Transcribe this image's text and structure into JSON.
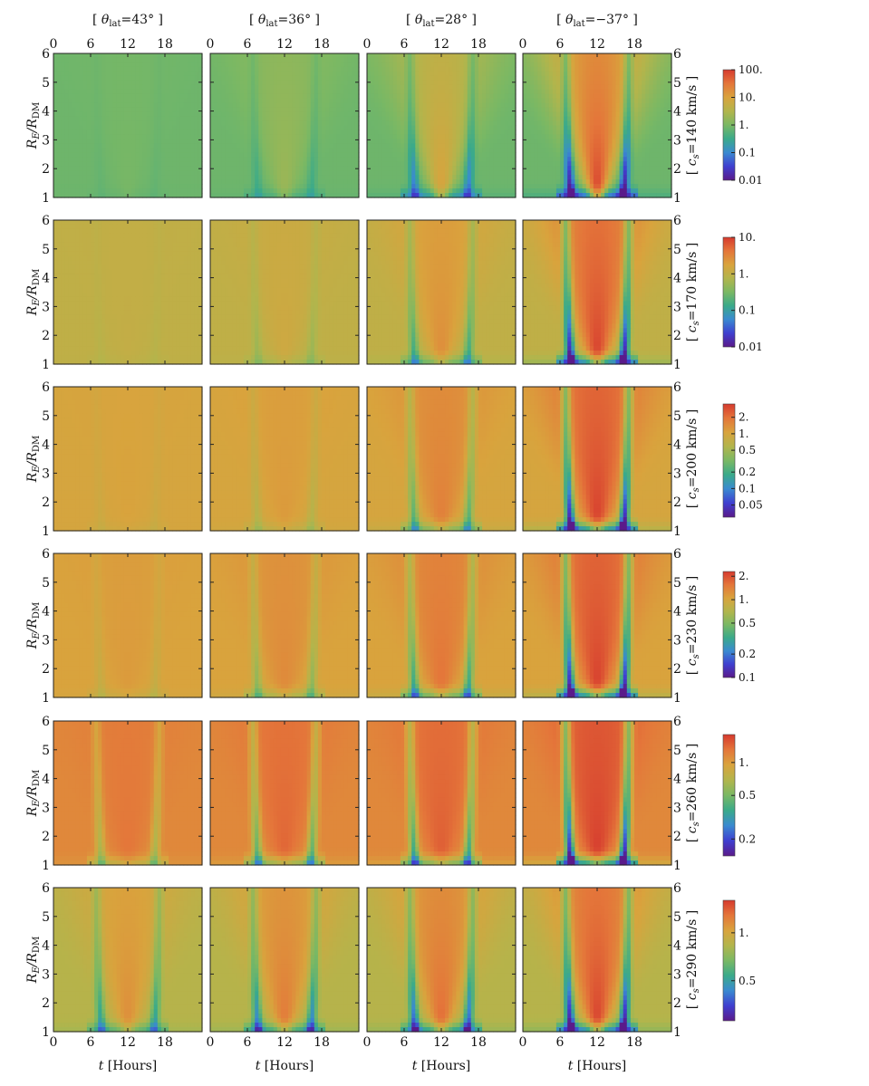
{
  "chart_data": {
    "type": "heatmap",
    "column_titles": [
      {
        "open": "[ ",
        "sym": "θ",
        "sub": "lat",
        "rest": "=43° ]"
      },
      {
        "open": "[ ",
        "sym": "θ",
        "sub": "lat",
        "rest": "=36° ]"
      },
      {
        "open": "[ ",
        "sym": "θ",
        "sub": "lat",
        "rest": "=28° ]"
      },
      {
        "open": "[ ",
        "sym": "θ",
        "sub": "lat",
        "rest": "=−37° ]"
      }
    ],
    "latitudes_deg": [
      43,
      36,
      28,
      -37
    ],
    "x_axis": {
      "label_sym": "t",
      "label_rest": " [Hours]",
      "ticks": [
        0,
        6,
        12,
        18
      ],
      "range": [
        0,
        24
      ]
    },
    "y_axis": {
      "label_sym": "R",
      "label_sub": "E",
      "label_mid": "/R",
      "label_sub2": "DM",
      "ticks": [
        1,
        2,
        3,
        4,
        5,
        6
      ],
      "range": [
        1,
        6
      ]
    },
    "rows": [
      {
        "row_label": {
          "open": "[ ",
          "sym": "c",
          "sub": "s",
          "rest": "=140 km/s ]"
        },
        "cs_kms": 140,
        "colorbar": {
          "log": true,
          "min": 0.01,
          "max": 100,
          "ticks": [
            {
              "v": 100,
              "t": "100."
            },
            {
              "v": 10,
              "t": "10."
            },
            {
              "v": 1,
              "t": "1."
            },
            {
              "v": 0.1,
              "t": "0.1"
            },
            {
              "v": 0.01,
              "t": "0.01"
            }
          ]
        },
        "background_value": 0.8,
        "feature_strength": [
          0.04,
          0.2,
          0.55,
          1.0
        ]
      },
      {
        "row_label": {
          "open": "[ ",
          "sym": "c",
          "sub": "s",
          "rest": "=170 km/s ]"
        },
        "cs_kms": 170,
        "colorbar": {
          "log": true,
          "min": 0.01,
          "max": 10,
          "ticks": [
            {
              "v": 10,
              "t": "10."
            },
            {
              "v": 1,
              "t": "1."
            },
            {
              "v": 0.1,
              "t": "0.1"
            },
            {
              "v": 0.01,
              "t": "0.01"
            }
          ]
        },
        "background_value": 1.0,
        "feature_strength": [
          0.04,
          0.15,
          0.45,
          1.0
        ]
      },
      {
        "row_label": {
          "open": "[ ",
          "sym": "c",
          "sub": "s",
          "rest": "=200 km/s ]"
        },
        "cs_kms": 200,
        "colorbar": {
          "log": true,
          "min": 0.03,
          "max": 3.5,
          "ticks": [
            {
              "v": 2,
              "t": "2."
            },
            {
              "v": 1,
              "t": "1."
            },
            {
              "v": 0.5,
              "t": "0.5"
            },
            {
              "v": 0.2,
              "t": "0.2"
            },
            {
              "v": 0.1,
              "t": "0.1"
            },
            {
              "v": 0.05,
              "t": "0.05"
            }
          ]
        },
        "background_value": 1.0,
        "feature_strength": [
          0.05,
          0.15,
          0.45,
          1.0
        ]
      },
      {
        "row_label": {
          "open": "[ ",
          "sym": "c",
          "sub": "s",
          "rest": "=230 km/s ]"
        },
        "cs_kms": 230,
        "colorbar": {
          "log": true,
          "min": 0.1,
          "max": 2.3,
          "ticks": [
            {
              "v": 2,
              "t": "2."
            },
            {
              "v": 1,
              "t": "1."
            },
            {
              "v": 0.5,
              "t": "0.5"
            },
            {
              "v": 0.2,
              "t": "0.2"
            },
            {
              "v": 0.1,
              "t": "0.1"
            }
          ]
        },
        "background_value": 1.05,
        "feature_strength": [
          0.1,
          0.3,
          0.55,
          1.0
        ]
      },
      {
        "row_label": {
          "open": "[ ",
          "sym": "c",
          "sub": "s",
          "rest": "=260 km/s ]"
        },
        "cs_kms": 260,
        "colorbar": {
          "log": true,
          "min": 0.14,
          "max": 1.8,
          "ticks": [
            {
              "v": 1,
              "t": "1."
            },
            {
              "v": 0.5,
              "t": "0.5"
            },
            {
              "v": 0.2,
              "t": "0.2"
            }
          ]
        },
        "background_value": 1.15,
        "feature_strength": [
          0.3,
          0.5,
          0.6,
          1.0
        ]
      },
      {
        "row_label": {
          "open": "[ ",
          "sym": "c",
          "sub": "s",
          "rest": "=290 km/s ]"
        },
        "cs_kms": 290,
        "colorbar": {
          "log": true,
          "min": 0.28,
          "max": 1.6,
          "ticks": [
            {
              "v": 1,
              "t": "1."
            },
            {
              "v": 0.5,
              "t": "0.5"
            }
          ]
        },
        "background_value": 0.85,
        "feature_strength": [
          0.5,
          0.65,
          0.75,
          1.0
        ]
      }
    ],
    "colormap": [
      "#5a1a8a",
      "#3f3fd0",
      "#3a8ad0",
      "#3aaa8a",
      "#7ab864",
      "#b2b54c",
      "#d9a33d",
      "#e4763a",
      "#d63a2e"
    ]
  }
}
